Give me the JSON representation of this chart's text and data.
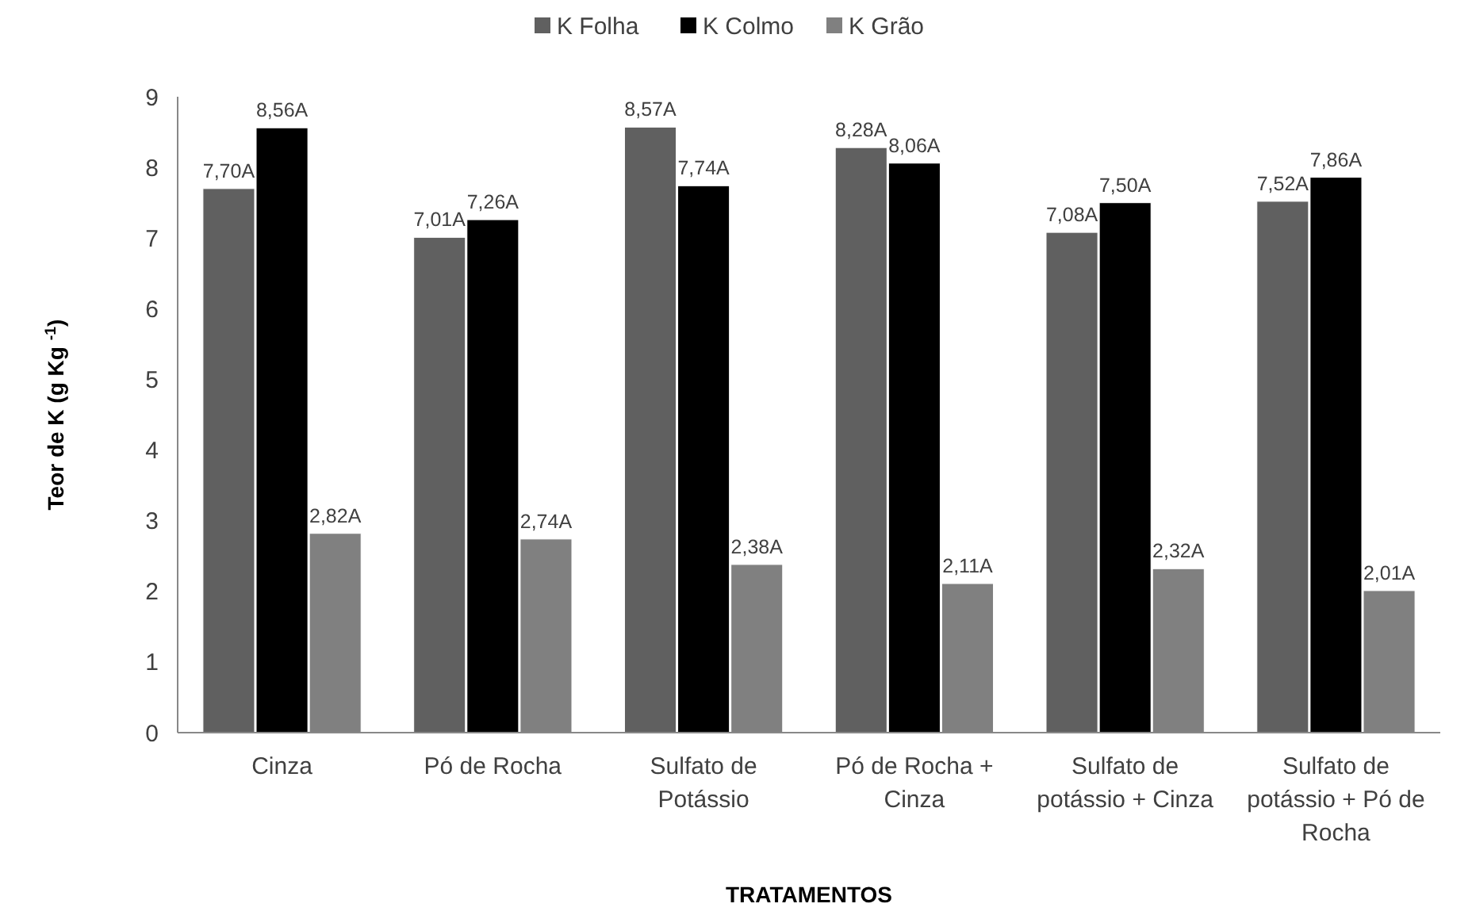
{
  "chart_data": {
    "type": "bar",
    "xlabel": "TRATAMENTOS",
    "ylabel": "Teor de K (g Kg $^{-1}$)",
    "categories": [
      "Cinza",
      "Pó de Rocha",
      "Sulfato de Potássio",
      "Pó de Rocha + Cinza",
      "Sulfato de potássio + Cinza",
      "Sulfato de potássio + Pó de Rocha"
    ],
    "series": [
      {
        "name": "K Folha",
        "color": "#606060",
        "values": [
          7.7,
          7.01,
          8.57,
          8.28,
          7.08,
          7.52
        ],
        "value_labels": [
          "7,70A",
          "7,01A",
          "8,57A",
          "8,28A",
          "7,08A",
          "7,52A"
        ]
      },
      {
        "name": "K Colmo",
        "color": "#000000",
        "values": [
          8.56,
          7.26,
          7.74,
          8.06,
          7.5,
          7.86
        ],
        "value_labels": [
          "8,56A",
          "7,26A",
          "7,74A",
          "8,06A",
          "7,50A",
          "7,86A"
        ]
      },
      {
        "name": "K Grão",
        "color": "#808080",
        "values": [
          2.82,
          2.74,
          2.38,
          2.11,
          2.32,
          2.01
        ],
        "value_labels": [
          "2,82A",
          "2,74A",
          "2,38A",
          "2,11A",
          "2,32A",
          "2,01A"
        ]
      }
    ],
    "ylim": [
      0,
      9
    ],
    "yticks": [
      0,
      1,
      2,
      3,
      4,
      5,
      6,
      7,
      8,
      9
    ],
    "grid": false,
    "legend": "top"
  }
}
